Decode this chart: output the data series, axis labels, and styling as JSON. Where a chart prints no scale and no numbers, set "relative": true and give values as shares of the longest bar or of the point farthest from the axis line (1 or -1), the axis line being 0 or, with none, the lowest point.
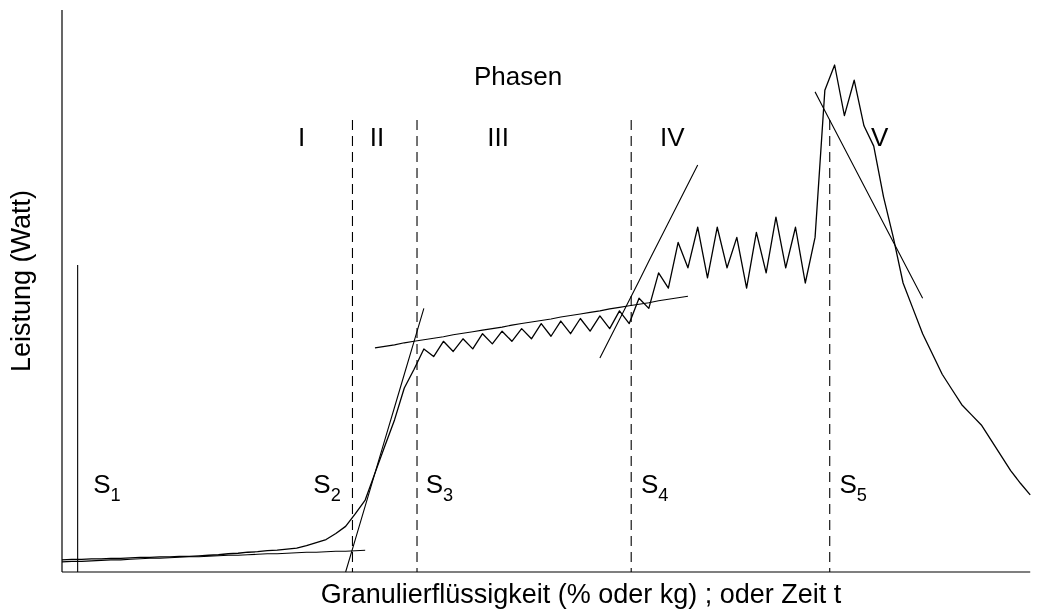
{
  "chart_data": {
    "type": "line",
    "relative": true,
    "title": "Phasen",
    "xlabel": "Granulierflüssigkeit (% oder kg) ; oder Zeit t",
    "ylabel": "Leistung (Watt)",
    "categories": [
      null,
      null,
      null,
      null,
      null,
      null,
      null,
      null,
      null,
      null,
      null,
      null,
      null,
      null,
      null,
      null,
      null,
      null,
      null,
      null,
      null,
      null,
      null,
      null,
      null,
      null,
      null,
      null,
      null,
      null,
      null,
      null,
      null,
      null,
      null,
      null,
      null,
      null,
      null,
      null,
      null,
      null,
      null,
      null,
      null,
      null,
      null,
      null,
      null,
      null,
      null,
      null,
      null,
      null,
      null,
      null,
      null,
      null,
      null,
      null,
      null,
      null,
      null,
      null,
      null,
      null,
      null,
      null,
      null,
      null,
      null,
      null,
      null,
      null,
      null,
      null,
      null,
      null,
      null,
      null,
      null,
      null,
      null,
      null,
      null,
      null,
      null,
      null,
      null,
      null,
      null,
      null,
      null,
      null,
      null,
      null,
      null,
      null,
      null,
      null
    ],
    "series": [
      {
        "color": "#000000",
        "values": [
          0.024,
          0.025,
          0.025,
          0.026,
          0.026,
          0.027,
          0.027,
          0.028,
          0.029,
          0.029,
          0.03,
          0.03,
          0.031,
          0.031,
          0.032,
          0.033,
          0.034,
          0.036,
          0.037,
          0.039,
          0.04,
          0.042,
          0.043,
          0.045,
          0.047,
          0.052,
          0.058,
          0.064,
          0.076,
          0.09,
          0.115,
          0.142,
          0.195,
          0.248,
          0.3,
          0.363,
          0.4,
          0.44,
          0.425,
          0.455,
          0.435,
          0.46,
          0.44,
          0.47,
          0.45,
          0.475,
          0.455,
          0.48,
          0.46,
          0.49,
          0.465,
          0.495,
          0.47,
          0.5,
          0.475,
          0.505,
          0.48,
          0.515,
          0.49,
          0.54,
          0.52,
          0.59,
          0.56,
          0.65,
          0.6,
          0.68,
          0.58,
          0.68,
          0.6,
          0.66,
          0.56,
          0.67,
          0.59,
          0.7,
          0.6,
          0.68,
          0.57,
          0.66,
          0.95,
          1.0,
          0.9,
          0.97,
          0.88,
          0.84,
          0.74,
          0.66,
          0.57,
          0.52,
          0.47,
          0.43,
          0.39,
          0.36,
          0.33,
          0.31,
          0.29,
          0.26,
          0.23,
          0.2,
          0.175,
          0.152
        ]
      },
      {
        "color": "#000000",
        "values": [
          0.02,
          0.021,
          0.021,
          0.022,
          0.023,
          0.024,
          0.024,
          0.025,
          0.026,
          0.027,
          0.027,
          0.028,
          0.029,
          0.03,
          0.03,
          0.031,
          0.032,
          0.033,
          0.033,
          0.034,
          0.035,
          0.036,
          0.036,
          0.037,
          0.038,
          0.039,
          0.039,
          0.04,
          0.041,
          0.041,
          0.042,
          0.043,
          null,
          null,
          null,
          null,
          null,
          null,
          null,
          null,
          null,
          null,
          null,
          null,
          null,
          null,
          null,
          null,
          null,
          null,
          null,
          null,
          null,
          null,
          null,
          null,
          null,
          null,
          null,
          null,
          null,
          null,
          null,
          null,
          null,
          null,
          null,
          null,
          null,
          null,
          null,
          null,
          null,
          null,
          null,
          null,
          null,
          null,
          null,
          null,
          null,
          null,
          null,
          null,
          null,
          null,
          null,
          null,
          null,
          null,
          null,
          null,
          null,
          null,
          null,
          null,
          null,
          null,
          null,
          null
        ]
      },
      {
        "color": "#000000",
        "values": [
          null,
          null,
          null,
          null,
          null,
          null,
          null,
          null,
          null,
          null,
          null,
          null,
          null,
          null,
          null,
          null,
          null,
          null,
          null,
          null,
          null,
          null,
          null,
          null,
          null,
          null,
          null,
          null,
          null,
          0,
          0.065,
          0.13,
          0.195,
          0.26,
          0.325,
          0.39,
          0.455,
          0.52,
          null,
          null,
          null,
          null,
          null,
          null,
          null,
          null,
          null,
          null,
          null,
          null,
          null,
          null,
          null,
          null,
          null,
          null,
          null,
          null,
          null,
          null,
          null,
          null,
          null,
          null,
          null,
          null,
          null,
          null,
          null,
          null,
          null,
          null,
          null,
          null,
          null,
          null,
          null,
          null,
          null,
          null,
          null,
          null,
          null,
          null,
          null,
          null,
          null,
          null,
          null,
          null,
          null,
          null,
          null,
          null,
          null,
          null,
          null,
          null,
          null,
          null
        ]
      },
      {
        "color": "#000000",
        "values": [
          null,
          null,
          null,
          null,
          null,
          null,
          null,
          null,
          null,
          null,
          null,
          null,
          null,
          null,
          null,
          null,
          null,
          null,
          null,
          null,
          null,
          null,
          null,
          null,
          null,
          null,
          null,
          null,
          null,
          null,
          null,
          null,
          0.442,
          0.445,
          0.448,
          0.452,
          0.455,
          0.458,
          0.461,
          0.464,
          0.468,
          0.471,
          0.474,
          0.477,
          0.48,
          0.483,
          0.487,
          0.49,
          0.493,
          0.496,
          0.499,
          0.503,
          0.506,
          0.509,
          0.512,
          0.515,
          0.519,
          0.522,
          0.525,
          0.528,
          0.531,
          0.535,
          0.538,
          0.541,
          0.544,
          null,
          null,
          null,
          null,
          null,
          null,
          null,
          null,
          null,
          null,
          null,
          null,
          null,
          null,
          null,
          null,
          null,
          null,
          null,
          null,
          null,
          null,
          null,
          null,
          null,
          null,
          null,
          null,
          null,
          null,
          null,
          null,
          null,
          null,
          null
        ]
      },
      {
        "color": "#000000",
        "values": [
          null,
          null,
          null,
          null,
          null,
          null,
          null,
          null,
          null,
          null,
          null,
          null,
          null,
          null,
          null,
          null,
          null,
          null,
          null,
          null,
          null,
          null,
          null,
          null,
          null,
          null,
          null,
          null,
          null,
          null,
          null,
          null,
          null,
          null,
          null,
          null,
          null,
          null,
          null,
          null,
          null,
          null,
          null,
          null,
          null,
          null,
          null,
          null,
          null,
          null,
          null,
          null,
          null,
          null,
          null,
          0.422,
          0.46,
          0.498,
          0.536,
          0.574,
          0.613,
          0.651,
          0.689,
          0.727,
          0.765,
          0.803,
          null,
          null,
          null,
          null,
          null,
          null,
          null,
          null,
          null,
          null,
          null,
          null,
          null,
          null,
          null,
          null,
          null,
          null,
          null,
          null,
          null,
          null,
          null,
          null,
          null,
          null,
          null,
          null,
          null,
          null,
          null,
          null,
          null,
          null
        ]
      },
      {
        "color": "#000000",
        "values": [
          null,
          null,
          null,
          null,
          null,
          null,
          null,
          null,
          null,
          null,
          null,
          null,
          null,
          null,
          null,
          null,
          null,
          null,
          null,
          null,
          null,
          null,
          null,
          null,
          null,
          null,
          null,
          null,
          null,
          null,
          null,
          null,
          null,
          null,
          null,
          null,
          null,
          null,
          null,
          null,
          null,
          null,
          null,
          null,
          null,
          null,
          null,
          null,
          null,
          null,
          null,
          null,
          null,
          null,
          null,
          null,
          null,
          null,
          null,
          null,
          null,
          null,
          null,
          null,
          null,
          null,
          null,
          null,
          null,
          null,
          null,
          null,
          null,
          null,
          null,
          null,
          null,
          0.947,
          0.91,
          0.873,
          0.836,
          0.799,
          0.762,
          0.725,
          0.688,
          0.651,
          0.614,
          0.577,
          0.54,
          null,
          null,
          null,
          null,
          null,
          null,
          null,
          null,
          null,
          null,
          null
        ]
      }
    ],
    "annotations": [
      "I",
      "II",
      "III",
      "IV",
      "V",
      "S$_{1}$",
      "S$_{2}$",
      "S$_{3}$",
      "S$_{4}$",
      "S$_{5}$"
    ]
  }
}
